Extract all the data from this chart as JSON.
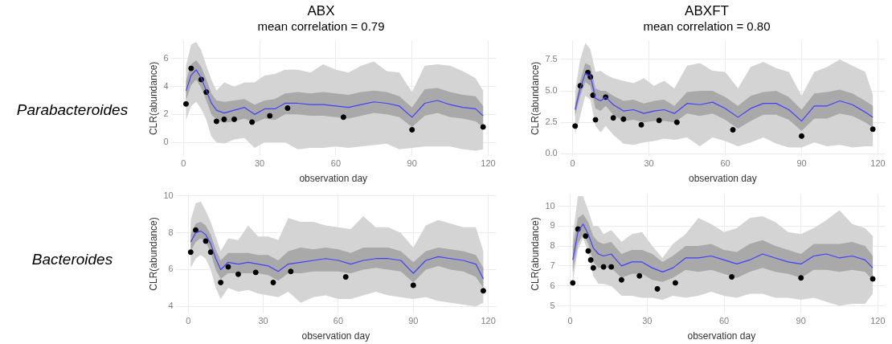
{
  "chart_data": [
    {
      "type": "line",
      "title": "ABX",
      "subtitle": "mean correlation = 0.79",
      "xlabel": "observation day",
      "ylabel": "CLR(abundance)",
      "annotations": [
        "Parabacteroides"
      ],
      "xlim": [
        -5,
        123
      ],
      "xticks": [
        0,
        30,
        60,
        90,
        120
      ],
      "ylim": [
        -1,
        7.3
      ],
      "yticks": [
        0,
        2,
        4,
        6
      ],
      "grid": true,
      "legend": false,
      "x": [
        1,
        3,
        5,
        7,
        9,
        11,
        13,
        16,
        20,
        24,
        28,
        32,
        36,
        40,
        45,
        50,
        55,
        60,
        65,
        70,
        75,
        80,
        85,
        90,
        95,
        100,
        105,
        110,
        115,
        118
      ],
      "series": [
        {
          "color": "#d4d4d4",
          "values": [
            null,
            null,
            null,
            null,
            null,
            null,
            null,
            null,
            null,
            null,
            null,
            null,
            null,
            null,
            null,
            null,
            null,
            null,
            null,
            null,
            null,
            null,
            null,
            null,
            null,
            null,
            null,
            null,
            null,
            null
          ],
          "upper": [
            5.5,
            7.0,
            7.2,
            6.6,
            5.5,
            4.5,
            3.7,
            4.3,
            4.0,
            4.3,
            4.3,
            4.8,
            4.9,
            5.2,
            5.2,
            5.0,
            5.6,
            5.2,
            5.0,
            5.5,
            5.8,
            5.1,
            5.0,
            3.6,
            5.5,
            5.6,
            5.5,
            5.1,
            4.6,
            3.7
          ],
          "lower": [
            1.6,
            2.6,
            2.9,
            2.4,
            1.6,
            0.4,
            0.0,
            -0.1,
            0.2,
            0.3,
            -0.4,
            0.0,
            0.0,
            0.0,
            -0.5,
            -0.4,
            -0.4,
            -0.3,
            -0.4,
            -0.3,
            -0.2,
            -0.1,
            -0.5,
            -0.4,
            -0.3,
            -0.3,
            -0.3,
            -0.5,
            -0.6,
            -0.5
          ]
        },
        {
          "color": "#a9a9a9",
          "values": [
            null,
            null,
            null,
            null,
            null,
            null,
            null,
            null,
            null,
            null,
            null,
            null,
            null,
            null,
            null,
            null,
            null,
            null,
            null,
            null,
            null,
            null,
            null,
            null,
            null,
            null,
            null,
            null,
            null,
            null
          ],
          "upper": [
            4.4,
            5.6,
            5.9,
            5.4,
            4.5,
            3.5,
            3.0,
            2.9,
            3.0,
            3.1,
            2.7,
            3.0,
            3.1,
            3.5,
            3.6,
            3.5,
            3.6,
            3.5,
            3.4,
            3.6,
            3.7,
            3.6,
            3.3,
            2.5,
            3.8,
            3.9,
            3.6,
            3.4,
            3.3,
            2.6
          ],
          "lower": [
            3.0,
            4.1,
            4.5,
            3.9,
            3.0,
            2.0,
            1.6,
            1.4,
            1.5,
            1.7,
            1.4,
            1.7,
            1.6,
            2.0,
            2.0,
            1.9,
            1.9,
            1.8,
            1.7,
            1.9,
            2.1,
            2.0,
            1.8,
            1.1,
            1.9,
            2.1,
            1.8,
            1.7,
            1.5,
            1.1
          ]
        },
        {
          "color": "#4040ff",
          "values": [
            3.7,
            4.8,
            5.2,
            4.6,
            3.7,
            2.8,
            2.3,
            2.1,
            2.3,
            2.5,
            2.0,
            2.4,
            2.4,
            2.8,
            2.8,
            2.7,
            2.7,
            2.6,
            2.5,
            2.7,
            2.9,
            2.8,
            2.6,
            1.8,
            2.8,
            3.0,
            2.7,
            2.5,
            2.4,
            1.9
          ]
        },
        {
          "type": "scatter",
          "color": "#000000",
          "marker": "circle",
          "x": [
            1,
            3,
            7,
            9,
            13,
            16,
            20,
            27,
            34,
            41,
            63,
            90,
            118
          ],
          "values": [
            2.75,
            5.3,
            4.5,
            3.6,
            1.5,
            1.65,
            1.65,
            1.45,
            1.9,
            2.45,
            1.8,
            0.9,
            1.1
          ]
        }
      ]
    },
    {
      "type": "line",
      "title": "ABXFT",
      "subtitle": "mean correlation = 0.80",
      "xlabel": "observation day",
      "ylabel": "CLR(abundance)",
      "xlim": [
        -5,
        123
      ],
      "xticks": [
        0,
        30,
        60,
        90,
        120
      ],
      "ylim": [
        -0.2,
        9.0
      ],
      "yticks": [
        {
          "value": 0,
          "label": "0.0"
        },
        {
          "value": 2.5,
          "label": "2.5"
        },
        {
          "value": 5,
          "label": "5.0"
        },
        {
          "value": 7.5,
          "label": "7.5"
        }
      ],
      "grid": true,
      "legend": false,
      "x": [
        1,
        3,
        5,
        7,
        9,
        11,
        13,
        16,
        20,
        24,
        28,
        32,
        36,
        40,
        45,
        50,
        55,
        60,
        65,
        70,
        75,
        80,
        85,
        90,
        95,
        100,
        105,
        110,
        115,
        118
      ],
      "series": [
        {
          "color": "#d4d4d4",
          "values": [
            null,
            null,
            null,
            null,
            null,
            null,
            null,
            null,
            null,
            null,
            null,
            null,
            null,
            null,
            null,
            null,
            null,
            null,
            null,
            null,
            null,
            null,
            null,
            null,
            null,
            null,
            null,
            null,
            null,
            null
          ],
          "upper": [
            5.0,
            7.5,
            8.8,
            8.3,
            6.5,
            6.6,
            6.3,
            6.0,
            5.8,
            5.6,
            6.0,
            5.4,
            5.8,
            5.2,
            7.0,
            7.2,
            6.6,
            6.5,
            5.2,
            6.9,
            7.3,
            6.8,
            6.5,
            4.6,
            6.5,
            6.9,
            7.5,
            7.0,
            6.5,
            4.7
          ],
          "lower": [
            1.5,
            3.0,
            4.6,
            4.3,
            2.2,
            1.7,
            2.2,
            1.5,
            0.8,
            0.7,
            0.9,
            1.0,
            1.2,
            1.1,
            1.3,
            0.6,
            1.3,
            1.0,
            0.6,
            0.9,
            1.3,
            0.8,
            0.5,
            0.5,
            0.9,
            0.6,
            0.7,
            0.5,
            0.6,
            0.6
          ]
        },
        {
          "color": "#a9a9a9",
          "values": [
            null,
            null,
            null,
            null,
            null,
            null,
            null,
            null,
            null,
            null,
            null,
            null,
            null,
            null,
            null,
            null,
            null,
            null,
            null,
            null,
            null,
            null,
            null,
            null,
            null,
            null,
            null,
            null,
            null,
            null
          ],
          "upper": [
            4.0,
            5.8,
            7.2,
            7.0,
            5.2,
            5.0,
            5.0,
            4.6,
            4.2,
            4.3,
            4.0,
            4.2,
            4.3,
            3.8,
            4.9,
            5.0,
            5.0,
            4.5,
            3.8,
            4.6,
            4.9,
            5.0,
            4.5,
            3.5,
            4.8,
            4.9,
            5.1,
            4.8,
            4.2,
            3.8
          ],
          "lower": [
            3.0,
            4.6,
            5.7,
            5.4,
            3.6,
            3.4,
            3.8,
            3.1,
            2.6,
            2.7,
            2.5,
            2.6,
            2.6,
            2.5,
            3.2,
            3.0,
            3.2,
            2.7,
            2.0,
            2.6,
            3.1,
            3.1,
            2.7,
            1.8,
            2.8,
            2.8,
            3.2,
            3.0,
            2.5,
            2.1
          ]
        },
        {
          "color": "#4040ff",
          "values": [
            3.5,
            5.2,
            6.4,
            6.2,
            4.4,
            4.2,
            4.5,
            3.9,
            3.4,
            3.5,
            3.2,
            3.4,
            3.5,
            3.2,
            4.0,
            3.9,
            4.1,
            3.6,
            2.9,
            3.6,
            4.0,
            4.0,
            3.5,
            2.6,
            3.8,
            3.8,
            4.2,
            3.9,
            3.3,
            2.9
          ]
        },
        {
          "type": "scatter",
          "color": "#000000",
          "marker": "circle",
          "x": [
            1,
            3,
            6,
            7,
            8,
            9,
            13,
            16,
            20,
            27,
            34,
            41,
            63,
            90,
            118
          ],
          "values": [
            2.2,
            5.4,
            6.45,
            6.1,
            4.65,
            2.7,
            4.5,
            2.85,
            2.75,
            2.3,
            2.65,
            2.5,
            1.9,
            1.4,
            1.95
          ]
        }
      ]
    },
    {
      "type": "line",
      "xlabel": "observation day",
      "ylabel": "CLR(abundance)",
      "annotations": [
        "Bacteroides"
      ],
      "xlim": [
        -5,
        123
      ],
      "xticks": [
        0,
        30,
        60,
        90,
        120
      ],
      "ylim": [
        3.6,
        10.1
      ],
      "yticks": [
        4,
        6,
        8,
        10
      ],
      "grid": true,
      "legend": false,
      "x": [
        1,
        3,
        5,
        7,
        9,
        11,
        13,
        16,
        20,
        24,
        28,
        32,
        36,
        40,
        45,
        50,
        55,
        60,
        65,
        70,
        75,
        80,
        85,
        90,
        95,
        100,
        105,
        110,
        115,
        118
      ],
      "series": [
        {
          "color": "#d4d4d4",
          "values": [
            null,
            null,
            null,
            null,
            null,
            null,
            null,
            null,
            null,
            null,
            null,
            null,
            null,
            null,
            null,
            null,
            null,
            null,
            null,
            null,
            null,
            null,
            null,
            null,
            null,
            null,
            null,
            null,
            null,
            null
          ],
          "upper": [
            8.7,
            9.6,
            9.7,
            9.2,
            8.6,
            7.8,
            7.0,
            7.7,
            7.6,
            8.4,
            7.8,
            7.8,
            7.6,
            8.8,
            8.6,
            8.6,
            8.4,
            8.3,
            8.2,
            8.9,
            8.3,
            8.3,
            8.0,
            7.2,
            8.4,
            8.7,
            8.5,
            8.3,
            8.3,
            7.0
          ],
          "lower": [
            6.1,
            6.6,
            6.8,
            6.6,
            6.0,
            5.0,
            4.4,
            5.0,
            4.8,
            4.9,
            4.7,
            4.6,
            4.5,
            4.8,
            4.2,
            4.5,
            4.6,
            4.4,
            4.4,
            4.6,
            4.8,
            4.6,
            4.5,
            4.4,
            4.5,
            4.3,
            4.2,
            4.1,
            4.0,
            4.2
          ]
        },
        {
          "color": "#a9a9a9",
          "values": [
            null,
            null,
            null,
            null,
            null,
            null,
            null,
            null,
            null,
            null,
            null,
            null,
            null,
            null,
            null,
            null,
            null,
            null,
            null,
            null,
            null,
            null,
            null,
            null,
            null,
            null,
            null,
            null,
            null,
            null
          ],
          "upper": [
            7.9,
            8.5,
            8.6,
            8.4,
            7.9,
            7.1,
            6.5,
            6.9,
            6.9,
            6.9,
            6.8,
            6.8,
            6.5,
            7.0,
            7.2,
            7.1,
            7.2,
            7.1,
            6.9,
            7.2,
            7.2,
            7.2,
            7.0,
            6.4,
            7.0,
            7.2,
            7.1,
            7.0,
            6.8,
            6.1
          ],
          "lower": [
            7.0,
            7.5,
            7.7,
            7.5,
            6.9,
            6.0,
            5.5,
            5.8,
            5.8,
            5.8,
            5.8,
            5.7,
            5.4,
            5.8,
            5.8,
            5.9,
            5.9,
            5.9,
            5.8,
            6.0,
            6.1,
            6.0,
            5.9,
            5.3,
            6.0,
            6.2,
            6.0,
            5.9,
            5.6,
            5.0
          ]
        },
        {
          "color": "#4040ff",
          "values": [
            7.5,
            8.0,
            8.1,
            7.9,
            7.4,
            6.6,
            6.0,
            6.4,
            6.3,
            6.4,
            6.3,
            6.2,
            5.9,
            6.3,
            6.4,
            6.5,
            6.6,
            6.5,
            6.3,
            6.5,
            6.6,
            6.6,
            6.5,
            5.8,
            6.5,
            6.7,
            6.6,
            6.5,
            6.3,
            5.5
          ]
        },
        {
          "type": "scatter",
          "color": "#000000",
          "marker": "circle",
          "x": [
            1,
            3,
            7,
            9,
            13,
            16,
            20,
            27,
            34,
            41,
            63,
            90,
            118
          ],
          "values": [
            6.95,
            8.15,
            7.55,
            6.95,
            5.3,
            6.15,
            5.75,
            5.85,
            5.3,
            5.9,
            5.6,
            5.15,
            4.85
          ]
        }
      ]
    },
    {
      "type": "line",
      "xlabel": "observation day",
      "ylabel": "CLR(abundance)",
      "xlim": [
        -5,
        123
      ],
      "xticks": [
        0,
        30,
        60,
        90,
        120
      ],
      "ylim": [
        4.6,
        10.6
      ],
      "yticks": [
        5,
        6,
        7,
        8,
        9,
        10
      ],
      "grid": true,
      "legend": false,
      "x": [
        1,
        3,
        5,
        7,
        9,
        11,
        13,
        16,
        20,
        24,
        28,
        32,
        36,
        40,
        45,
        50,
        55,
        60,
        65,
        70,
        75,
        80,
        85,
        90,
        95,
        100,
        105,
        110,
        115,
        118
      ],
      "series": [
        {
          "color": "#d4d4d4",
          "values": [
            null,
            null,
            null,
            null,
            null,
            null,
            null,
            null,
            null,
            null,
            null,
            null,
            null,
            null,
            null,
            null,
            null,
            null,
            null,
            null,
            null,
            null,
            null,
            null,
            null,
            null,
            null,
            null,
            null,
            null
          ],
          "upper": [
            8.5,
            10.5,
            10.5,
            9.8,
            9.0,
            9.0,
            8.6,
            8.8,
            8.2,
            8.6,
            8.7,
            8.0,
            7.4,
            8.1,
            8.6,
            9.4,
            9.1,
            8.7,
            8.9,
            9.4,
            9.5,
            9.2,
            8.7,
            8.6,
            8.9,
            9.3,
            9.8,
            9.1,
            8.9,
            8.5
          ],
          "lower": [
            6.2,
            7.8,
            8.4,
            7.7,
            6.5,
            6.1,
            6.1,
            6.0,
            5.5,
            5.5,
            5.4,
            5.4,
            5.3,
            5.5,
            5.4,
            5.5,
            5.7,
            5.5,
            5.4,
            5.6,
            5.6,
            5.4,
            5.4,
            5.3,
            5.4,
            5.2,
            5.0,
            5.1,
            5.1,
            5.6
          ]
        },
        {
          "color": "#a9a9a9",
          "values": [
            null,
            null,
            null,
            null,
            null,
            null,
            null,
            null,
            null,
            null,
            null,
            null,
            null,
            null,
            null,
            null,
            null,
            null,
            null,
            null,
            null,
            null,
            null,
            null,
            null,
            null,
            null,
            null,
            null,
            null
          ],
          "upper": [
            8.0,
            9.4,
            9.6,
            9.2,
            8.5,
            8.2,
            8.1,
            8.2,
            7.6,
            7.8,
            7.8,
            7.6,
            7.2,
            7.5,
            8.0,
            8.0,
            8.1,
            7.8,
            7.7,
            8.1,
            8.3,
            8.0,
            7.8,
            7.6,
            8.1,
            8.1,
            8.1,
            8.2,
            8.0,
            7.5
          ],
          "lower": [
            6.7,
            8.1,
            8.6,
            8.1,
            7.2,
            6.9,
            6.9,
            6.9,
            6.4,
            6.6,
            6.6,
            6.3,
            6.2,
            6.4,
            6.8,
            6.7,
            6.8,
            6.6,
            6.4,
            6.7,
            6.9,
            6.7,
            6.6,
            6.4,
            6.8,
            6.8,
            6.7,
            6.8,
            6.7,
            6.3
          ]
        },
        {
          "color": "#4040ff",
          "values": [
            7.3,
            8.7,
            9.1,
            8.6,
            7.9,
            7.6,
            7.5,
            7.6,
            7.0,
            7.2,
            7.2,
            6.9,
            6.7,
            6.9,
            7.4,
            7.4,
            7.5,
            7.3,
            7.1,
            7.3,
            7.6,
            7.4,
            7.2,
            7.1,
            7.5,
            7.6,
            7.4,
            7.5,
            7.3,
            6.9
          ]
        },
        {
          "type": "scatter",
          "color": "#000000",
          "marker": "circle",
          "x": [
            1,
            3,
            6,
            7,
            8,
            9,
            13,
            16,
            20,
            27,
            34,
            41,
            63,
            90,
            118
          ],
          "values": [
            6.15,
            8.85,
            8.5,
            7.75,
            7.3,
            6.9,
            6.95,
            6.95,
            6.3,
            6.5,
            5.85,
            6.15,
            6.45,
            6.4,
            6.35
          ]
        }
      ]
    }
  ]
}
